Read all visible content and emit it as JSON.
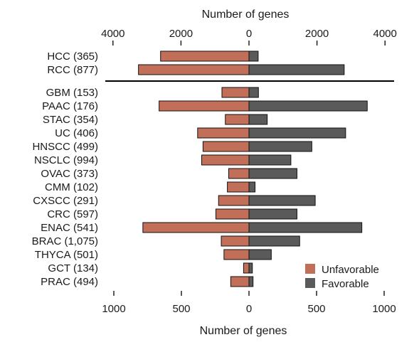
{
  "chart_data": [
    {
      "type": "bar",
      "orientation": "horizontal-diverging",
      "title": "",
      "xlabel": "Number of genes",
      "axis_position": "top",
      "xlim": [
        -4000,
        4000
      ],
      "xticks": [
        -4000,
        -2000,
        0,
        2000,
        4000
      ],
      "xtick_labels": [
        "4000",
        "2000",
        "0",
        "2000",
        "4000"
      ],
      "categories": [
        "HCC (365)",
        "RCC (877)"
      ],
      "series": [
        {
          "name": "Unfavorable",
          "color": "#c26f59",
          "values": [
            2600,
            3250
          ]
        },
        {
          "name": "Favorable",
          "color": "#5a5a5a",
          "values": [
            270,
            2800
          ]
        }
      ]
    },
    {
      "type": "bar",
      "orientation": "horizontal-diverging",
      "title": "",
      "xlabel": "Number of genes",
      "axis_position": "bottom",
      "xlim": [
        -1000,
        1000
      ],
      "xticks": [
        -1000,
        -500,
        0,
        500,
        1000
      ],
      "xtick_labels": [
        "1000",
        "500",
        "0",
        "500",
        "1000"
      ],
      "categories": [
        "GBM (153)",
        "PAAC (176)",
        "STAC (354)",
        "UC (406)",
        "HNSCC (499)",
        "NSCLC (994)",
        "OVAC (373)",
        "CMM (102)",
        "CXSCC (291)",
        "CRC (597)",
        "ENAC (541)",
        "BRAC (1,075)",
        "THYCA (501)",
        "GCT (134)",
        "PRAC (494)"
      ],
      "series": [
        {
          "name": "Unfavorable",
          "color": "#c26f59",
          "values": [
            200,
            665,
            175,
            380,
            340,
            350,
            150,
            160,
            225,
            245,
            785,
            205,
            185,
            40,
            135
          ]
        },
        {
          "name": "Favorable",
          "color": "#5a5a5a",
          "values": [
            70,
            875,
            135,
            715,
            465,
            310,
            355,
            45,
            490,
            355,
            835,
            375,
            165,
            25,
            30
          ]
        }
      ],
      "legend": {
        "placement": "bottom-right",
        "entries": [
          "Unfavorable",
          "Favorable"
        ]
      }
    }
  ]
}
